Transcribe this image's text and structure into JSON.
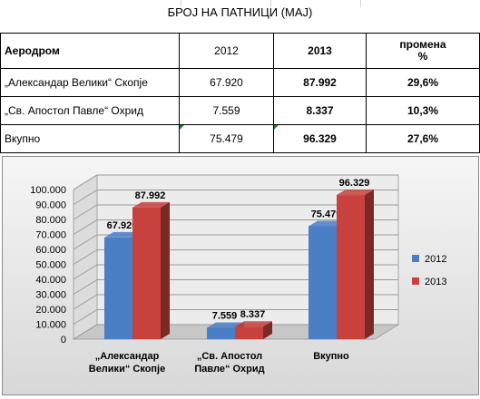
{
  "title": "БРОЈ НА ПАТНИЦИ (МАЈ)",
  "table": {
    "headers": [
      "Аеродром",
      "2012",
      "2013",
      "промена %"
    ],
    "rows": [
      [
        "„Александар Велики“ Скопје",
        "67.920",
        "87.992",
        "29,6%"
      ],
      [
        "„Св. Апостол Павле“ Охрид",
        "7.559",
        "8.337",
        "10,3%"
      ],
      [
        "Вкупно",
        "75.479",
        "96.329",
        "27,6%"
      ]
    ]
  },
  "colors": {
    "2012": "#4a7ec5",
    "2013": "#c8413c"
  },
  "chart_data": {
    "type": "bar",
    "categories": [
      "„Александар Велики“ Скопје",
      "„Св. Апостол Павле“ Охрид",
      "Вкупно"
    ],
    "category_lines": [
      [
        "„Александар",
        "Велики“ Скопје"
      ],
      [
        "„Св. Апостол",
        "Павле“ Охрид"
      ],
      [
        "Вкупно"
      ]
    ],
    "series": [
      {
        "name": "2012",
        "values": [
          67920,
          7559,
          75479
        ],
        "labels": [
          "67.920",
          "7.559",
          "75.479"
        ]
      },
      {
        "name": "2013",
        "values": [
          87992,
          8337,
          96329
        ],
        "labels": [
          "87.992",
          "8.337",
          "96.329"
        ]
      }
    ],
    "yticks": [
      "0",
      "10.000",
      "20.000",
      "30.000",
      "40.000",
      "50.000",
      "60.000",
      "70.000",
      "80.000",
      "90.000",
      "100.000"
    ],
    "ylim": [
      0,
      100000
    ],
    "legend": "right",
    "style": "3d"
  }
}
